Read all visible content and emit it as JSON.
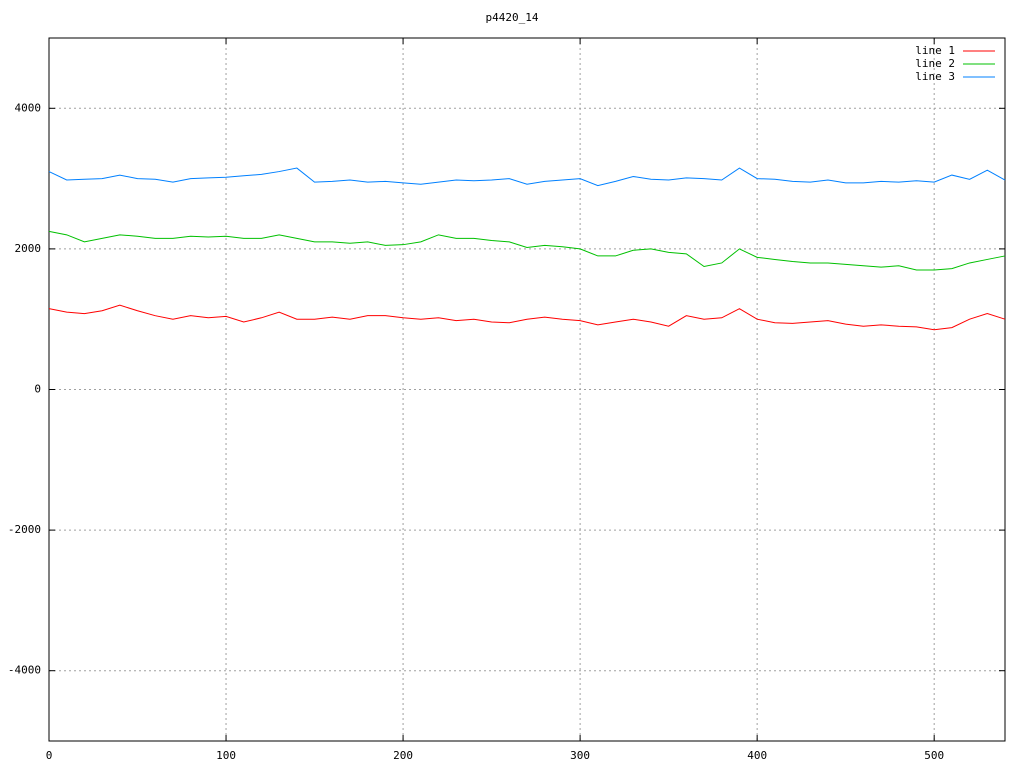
{
  "chart_data": {
    "type": "line",
    "title": "p4420_14",
    "x": [
      0,
      10,
      20,
      30,
      40,
      50,
      60,
      70,
      80,
      90,
      100,
      110,
      120,
      130,
      140,
      150,
      160,
      170,
      180,
      190,
      200,
      210,
      220,
      230,
      240,
      250,
      260,
      270,
      280,
      290,
      300,
      310,
      320,
      330,
      340,
      350,
      360,
      370,
      380,
      390,
      400,
      410,
      420,
      430,
      440,
      450,
      460,
      470,
      480,
      490,
      500,
      510,
      520,
      530,
      540
    ],
    "series": [
      {
        "name": "line 1",
        "color": "#ff0000",
        "values": [
          1150,
          1100,
          1080,
          1120,
          1200,
          1120,
          1050,
          1000,
          1050,
          1020,
          1040,
          960,
          1020,
          1100,
          1000,
          1000,
          1030,
          1000,
          1050,
          1050,
          1020,
          1000,
          1020,
          980,
          1000,
          960,
          950,
          1000,
          1030,
          1000,
          980,
          920,
          960,
          1000,
          960,
          900,
          1050,
          1000,
          1020,
          1150,
          1000,
          950,
          940,
          960,
          980,
          930,
          900,
          920,
          900,
          890,
          850,
          880,
          1000,
          1080,
          1000
        ]
      },
      {
        "name": "line 2",
        "color": "#00c000",
        "values": [
          2250,
          2200,
          2100,
          2150,
          2200,
          2180,
          2150,
          2150,
          2180,
          2170,
          2180,
          2150,
          2150,
          2200,
          2150,
          2100,
          2100,
          2080,
          2100,
          2050,
          2060,
          2100,
          2200,
          2150,
          2150,
          2120,
          2100,
          2020,
          2050,
          2030,
          2000,
          1900,
          1900,
          1980,
          2000,
          1950,
          1930,
          1750,
          1800,
          2000,
          1880,
          1850,
          1820,
          1800,
          1800,
          1780,
          1760,
          1740,
          1760,
          1700,
          1700,
          1720,
          1800,
          1850,
          1900
        ]
      },
      {
        "name": "line 3",
        "color": "#0080ff",
        "values": [
          3100,
          2980,
          2990,
          3000,
          3050,
          3000,
          2990,
          2950,
          3000,
          3010,
          3020,
          3040,
          3060,
          3100,
          3150,
          2950,
          2960,
          2980,
          2950,
          2960,
          2940,
          2920,
          2950,
          2980,
          2970,
          2980,
          3000,
          2920,
          2960,
          2980,
          3000,
          2900,
          2960,
          3030,
          2990,
          2980,
          3010,
          3000,
          2980,
          3150,
          3000,
          2990,
          2960,
          2950,
          2980,
          2940,
          2940,
          2960,
          2950,
          2970,
          2950,
          3050,
          2990,
          3120,
          2980
        ]
      }
    ],
    "xlim": [
      0,
      540
    ],
    "xticks": [
      0,
      100,
      200,
      300,
      400,
      500
    ],
    "ylim": [
      -5000,
      5000
    ],
    "yticks": [
      -4000,
      -2000,
      0,
      2000,
      4000
    ],
    "grid": true,
    "legend": "top-right"
  }
}
